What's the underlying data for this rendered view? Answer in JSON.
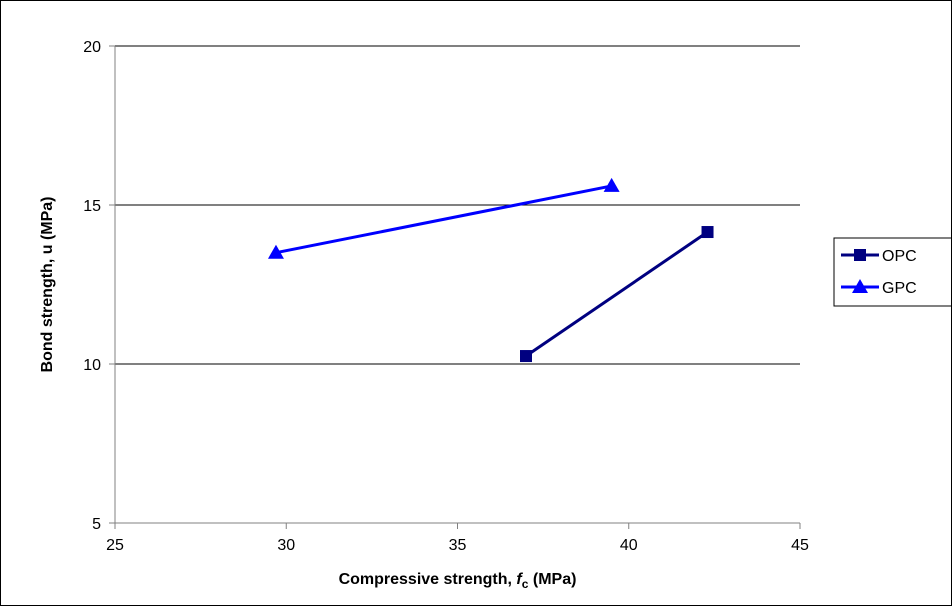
{
  "chart_data": {
    "type": "line",
    "title": "",
    "xlabel_parts": {
      "prefix": "Compressive strength, ",
      "symbol": "f",
      "subscript": "c",
      "suffix": " (MPa)"
    },
    "ylabel": "Bond strength,  u (MPa)",
    "xlim": [
      25,
      45
    ],
    "ylim": [
      5,
      20
    ],
    "xticks": [
      25,
      30,
      35,
      40,
      45
    ],
    "yticks": [
      5,
      10,
      15,
      20
    ],
    "grid": "horizontal major lines",
    "legend_position": "right",
    "series": [
      {
        "name": "OPC",
        "color": "#000080",
        "marker": "square",
        "points": [
          {
            "x": 37.0,
            "y": 10.25
          },
          {
            "x": 42.3,
            "y": 14.15
          }
        ]
      },
      {
        "name": "GPC",
        "color": "#0000ff",
        "marker": "triangle",
        "points": [
          {
            "x": 29.7,
            "y": 13.5
          },
          {
            "x": 39.5,
            "y": 15.6
          }
        ]
      }
    ]
  }
}
